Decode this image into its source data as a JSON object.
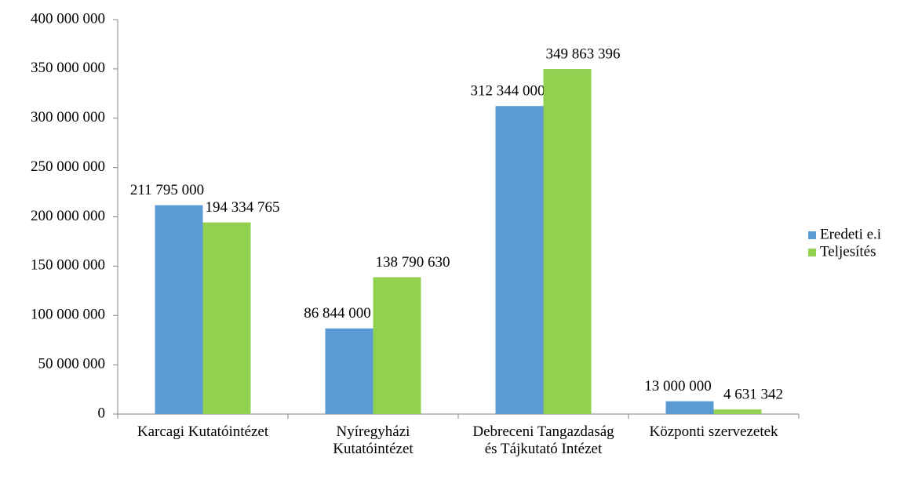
{
  "chart_data": {
    "type": "bar",
    "categories": [
      "Karcagi Kutatóintézet",
      "Nyíregyházi Kutatóintézet",
      "Debreceni Tangazdaság és Tájkutató Intézet",
      "Központi szervezetek"
    ],
    "series": [
      {
        "name": "Eredeti e.i",
        "color": "#5b9bd5",
        "values": [
          211795000,
          86844000,
          312344000,
          13000000
        ],
        "value_labels": [
          "211 795 000",
          "86 844 000",
          "312 344 000",
          "13 000 000"
        ]
      },
      {
        "name": "Teljesítés",
        "color": "#92d050",
        "values": [
          194334765,
          138790630,
          349863396,
          4631342
        ],
        "value_labels": [
          "194 334 765",
          "138 790 630",
          "349 863 396",
          "4 631 342"
        ]
      }
    ],
    "ylim": [
      0,
      400000000
    ],
    "yticks": [
      0,
      {
        "value": 50000000,
        "label": "50 000 000"
      },
      {
        "value": 100000000,
        "label": "100 000 000"
      },
      {
        "value": 150000000,
        "label": "150 000 000"
      },
      {
        "value": 200000000,
        "label": "200 000 000"
      },
      {
        "value": 250000000,
        "label": "250 000 000"
      },
      {
        "value": 300000000,
        "label": "300 000 000"
      },
      {
        "value": 350000000,
        "label": "350 000 000"
      },
      {
        "value": 400000000,
        "label": "400 000 000"
      }
    ],
    "legend": "right"
  }
}
